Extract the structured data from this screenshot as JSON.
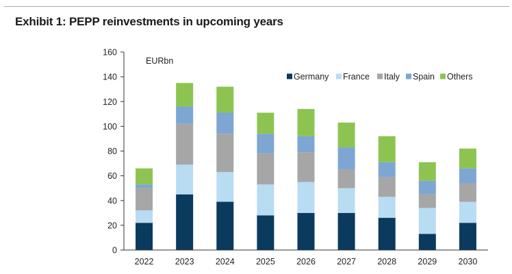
{
  "title": "Exhibit 1: PEPP reinvestments in upcoming years",
  "chart_data": {
    "type": "bar",
    "stacked": true,
    "unit_label": "EURbn",
    "categories": [
      "2022",
      "2023",
      "2024",
      "2025",
      "2026",
      "2027",
      "2028",
      "2029",
      "2030"
    ],
    "series": [
      {
        "name": "Germany",
        "color": "#0b3a5f",
        "values": [
          22,
          45,
          39,
          28,
          30,
          30,
          26,
          13,
          22
        ]
      },
      {
        "name": "France",
        "color": "#b8dcf2",
        "values": [
          10,
          24,
          24,
          25,
          25,
          20,
          17,
          21,
          17
        ]
      },
      {
        "name": "Italy",
        "color": "#a6a6a6",
        "values": [
          18,
          33,
          31,
          25,
          24,
          15,
          16,
          11,
          15
        ]
      },
      {
        "name": "Spain",
        "color": "#7ea6d2",
        "values": [
          3,
          14,
          17,
          16,
          13,
          18,
          12,
          11,
          12
        ]
      },
      {
        "name": "Others",
        "color": "#8dc451",
        "values": [
          13,
          19,
          21,
          17,
          22,
          20,
          21,
          15,
          16
        ]
      }
    ],
    "ylim": [
      0,
      160
    ],
    "yticks": [
      0,
      20,
      40,
      60,
      80,
      100,
      120,
      140,
      160
    ],
    "grid": false,
    "legend": "top-right"
  }
}
